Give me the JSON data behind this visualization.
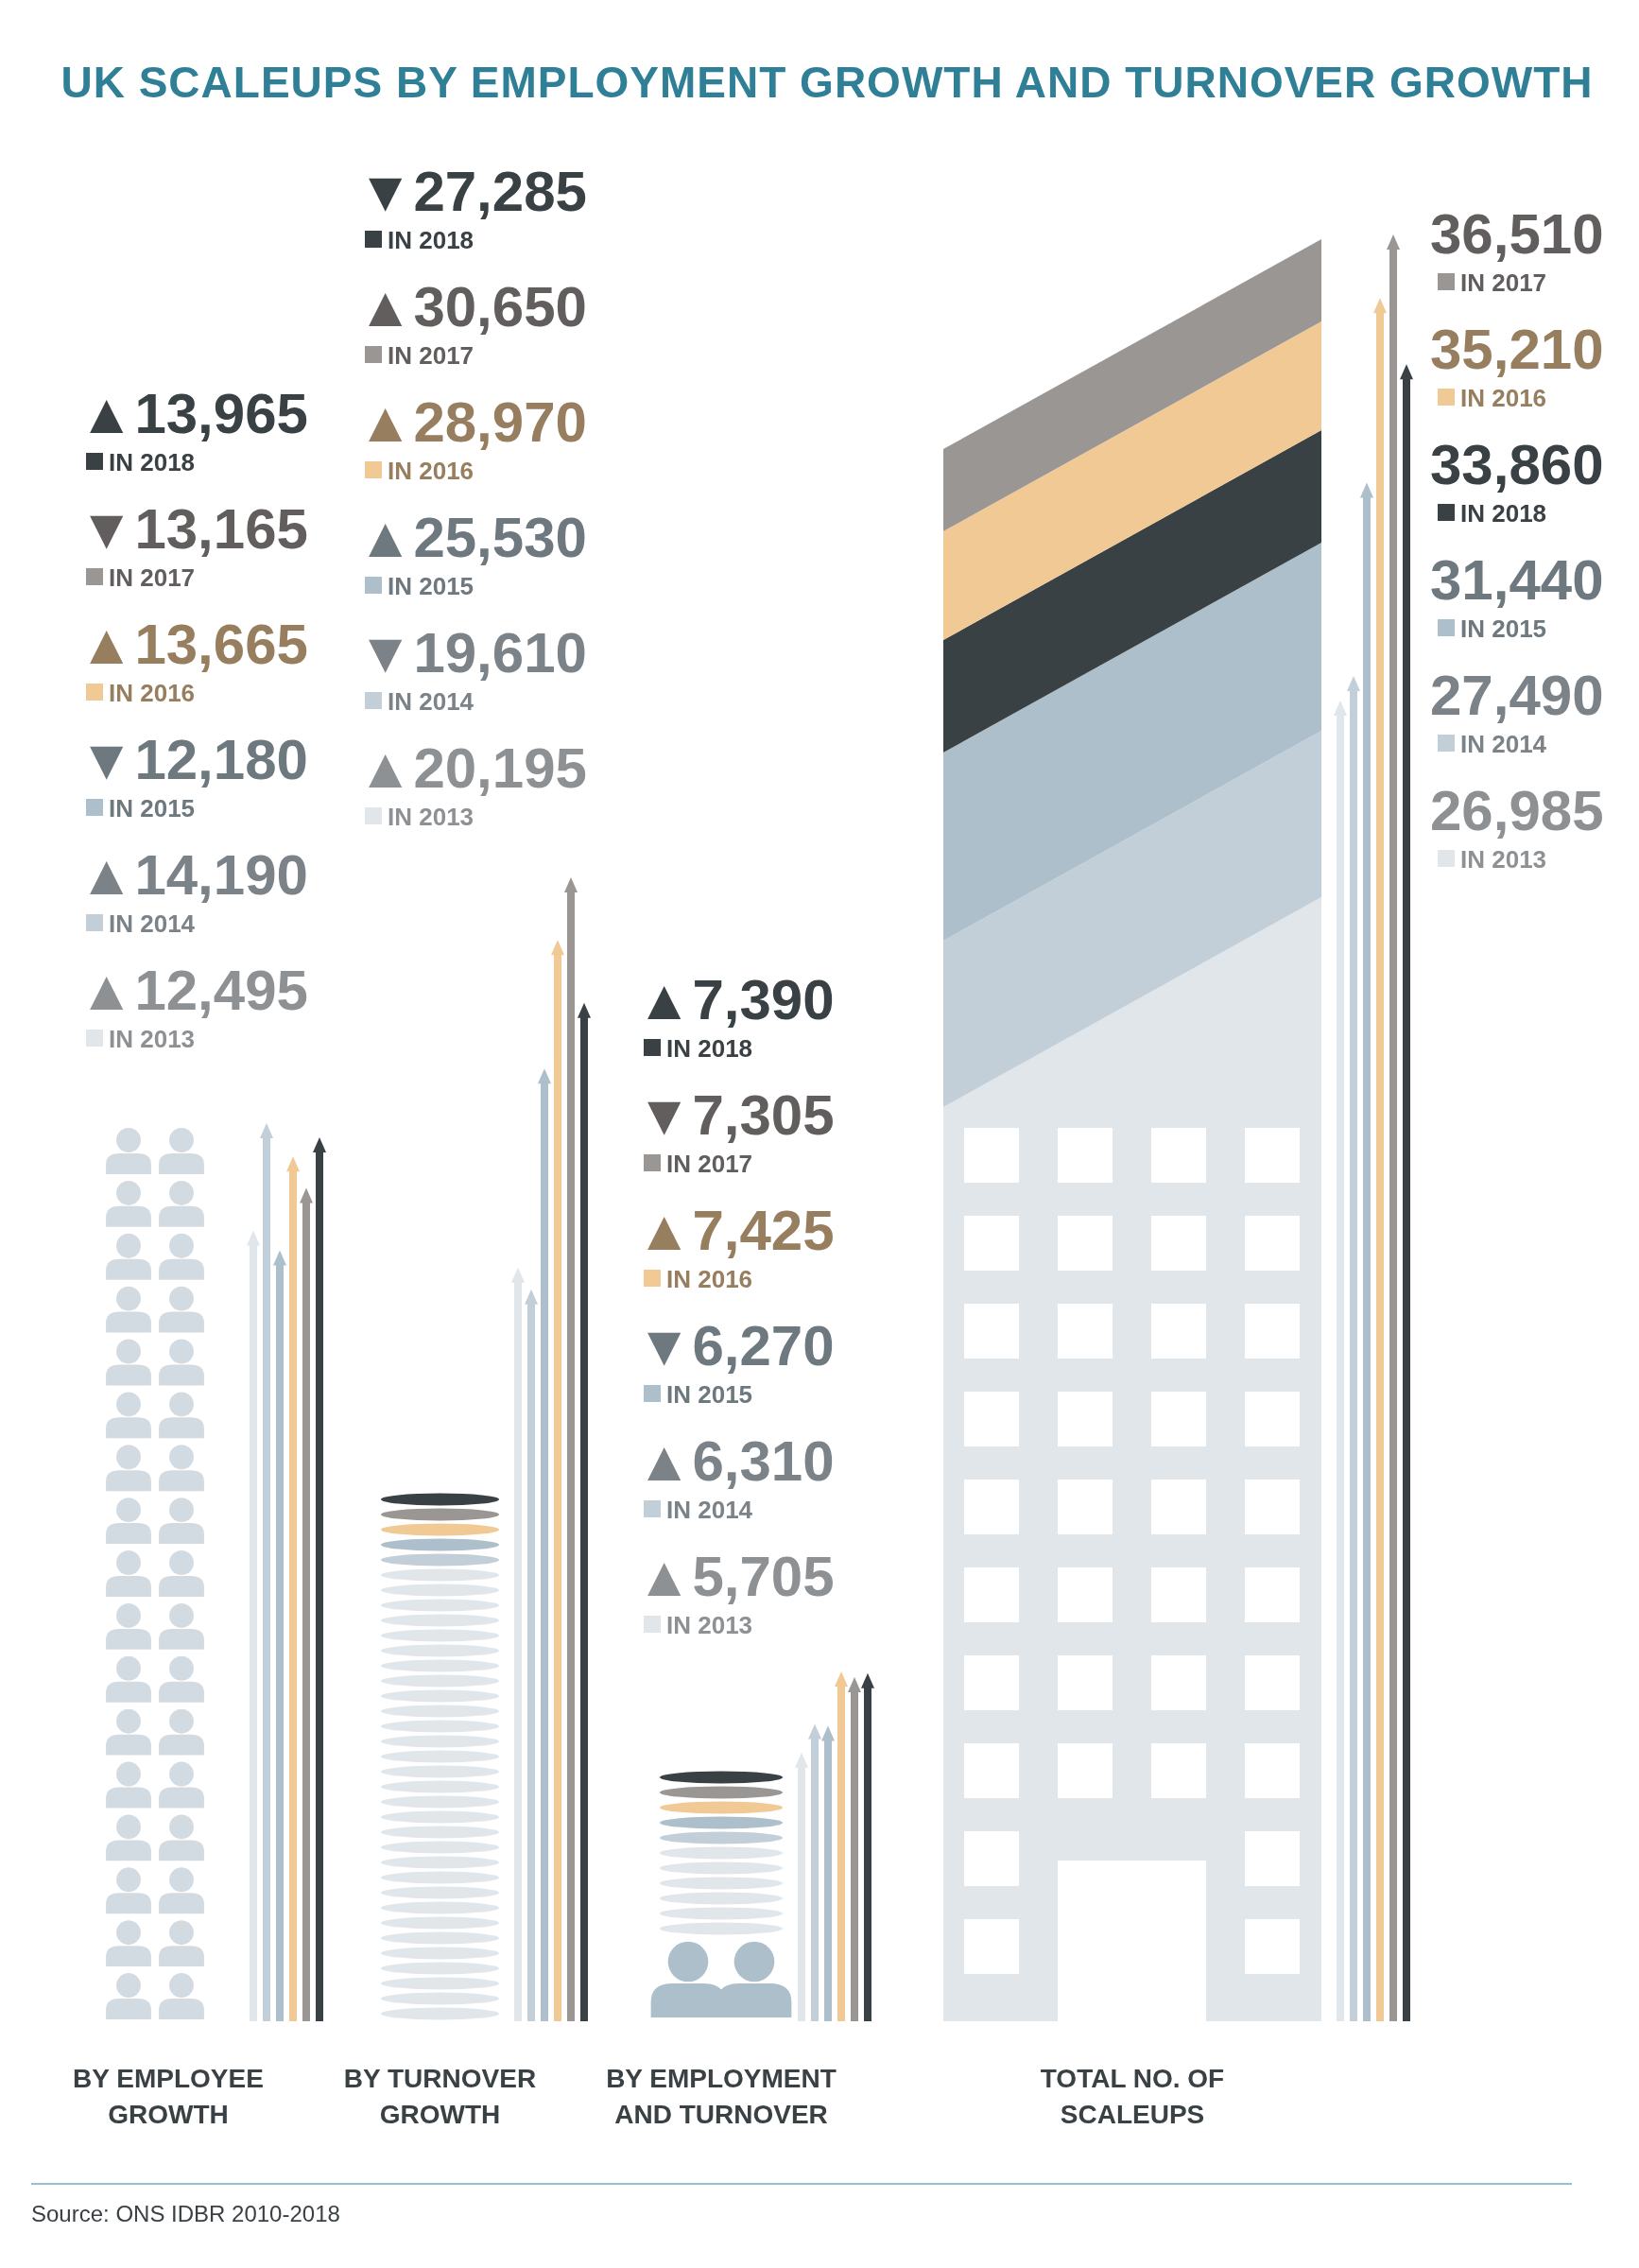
{
  "chart_data": {
    "type": "other",
    "title": "UK SCALEUPS BY EMPLOYMENT GROWTH AND TURNOVER GROWTH",
    "categories": [
      "BY EMPLOYEE GROWTH",
      "BY TURNOVER GROWTH",
      "BY EMPLOYMENT AND TURNOVER",
      "TOTAL NO. OF SCALEUPS"
    ],
    "series": [
      {
        "name": "IN 2013",
        "color": "#e1e6eb",
        "values": [
          12495,
          20195,
          5705,
          26985
        ],
        "value_labels": [
          "▲12,495",
          "▲20,195",
          "▲5,705",
          "26,985"
        ]
      },
      {
        "name": "IN 2014",
        "color": "#c3cfd8",
        "values": [
          14190,
          19610,
          6310,
          27490
        ],
        "value_labels": [
          "▲14,190",
          "▼19,610",
          "▲6,310",
          "27,490"
        ]
      },
      {
        "name": "IN 2015",
        "color": "#adbfca",
        "values": [
          12180,
          25530,
          6270,
          31440
        ],
        "value_labels": [
          "▼12,180",
          "▲25,530",
          "▼6,270",
          "31,440"
        ]
      },
      {
        "name": "IN 2016",
        "color": "#f0c995",
        "values": [
          13665,
          28970,
          7425,
          35210
        ],
        "value_labels": [
          "▲13,665",
          "▲28,970",
          "▲7,425",
          "35,210"
        ]
      },
      {
        "name": "IN 2017",
        "color": "#9a9694",
        "values": [
          13165,
          30650,
          7305,
          36510
        ],
        "value_labels": [
          "▼13,165",
          "▲30,650",
          "▼7,305",
          "36,510"
        ]
      },
      {
        "name": "IN 2018",
        "color": "#3a4144",
        "values": [
          13965,
          27285,
          7390,
          33860
        ],
        "value_labels": [
          "▲13,965",
          "▼27,285",
          "▲7,390",
          "33,860"
        ]
      }
    ],
    "annotations": [
      "Source: ONS IDBR 2010-2018"
    ]
  }
}
